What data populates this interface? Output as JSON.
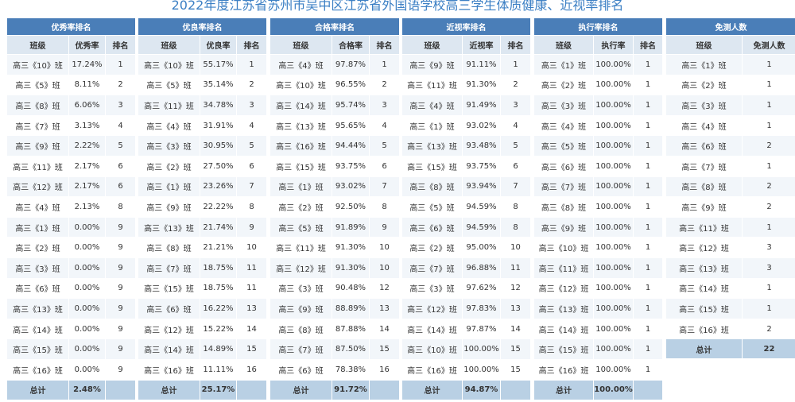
{
  "title": "2022年度江苏省苏州市吴中区江苏省外国语学校高三学生体质健康、近视率排名",
  "colors": {
    "title": "#3b7fc4",
    "caption_bg": "#4a7eb8",
    "column_header_bg": "#dde7f1",
    "row_odd_bg": "#f2f6fa",
    "total_bg": "#b9d0e4"
  },
  "tables": [
    {
      "caption": "优秀率排名",
      "columns": [
        "班级",
        "优秀率",
        "排名"
      ],
      "rows": [
        [
          "高三《10》班",
          "17.24%",
          "1"
        ],
        [
          "高三《5》班",
          "8.11%",
          "2"
        ],
        [
          "高三《8》班",
          "6.06%",
          "3"
        ],
        [
          "高三《7》班",
          "3.13%",
          "4"
        ],
        [
          "高三《9》班",
          "2.22%",
          "5"
        ],
        [
          "高三《11》班",
          "2.17%",
          "6"
        ],
        [
          "高三《12》班",
          "2.17%",
          "6"
        ],
        [
          "高三《4》班",
          "2.13%",
          "8"
        ],
        [
          "高三《1》班",
          "0.00%",
          "9"
        ],
        [
          "高三《2》班",
          "0.00%",
          "9"
        ],
        [
          "高三《3》班",
          "0.00%",
          "9"
        ],
        [
          "高三《6》班",
          "0.00%",
          "9"
        ],
        [
          "高三《13》班",
          "0.00%",
          "9"
        ],
        [
          "高三《14》班",
          "0.00%",
          "9"
        ],
        [
          "高三《15》班",
          "0.00%",
          "9"
        ],
        [
          "高三《16》班",
          "0.00%",
          "9"
        ]
      ],
      "total_label": "总计",
      "total_value": "2.48%"
    },
    {
      "caption": "优良率排名",
      "columns": [
        "班级",
        "优良率",
        "排名"
      ],
      "rows": [
        [
          "高三《10》班",
          "55.17%",
          "1"
        ],
        [
          "高三《5》班",
          "35.14%",
          "2"
        ],
        [
          "高三《11》班",
          "34.78%",
          "3"
        ],
        [
          "高三《4》班",
          "31.91%",
          "4"
        ],
        [
          "高三《3》班",
          "30.95%",
          "5"
        ],
        [
          "高三《2》班",
          "27.50%",
          "6"
        ],
        [
          "高三《1》班",
          "23.26%",
          "7"
        ],
        [
          "高三《9》班",
          "22.22%",
          "8"
        ],
        [
          "高三《13》班",
          "21.74%",
          "9"
        ],
        [
          "高三《8》班",
          "21.21%",
          "10"
        ],
        [
          "高三《7》班",
          "18.75%",
          "11"
        ],
        [
          "高三《15》班",
          "18.75%",
          "11"
        ],
        [
          "高三《6》班",
          "16.22%",
          "13"
        ],
        [
          "高三《12》班",
          "15.22%",
          "14"
        ],
        [
          "高三《14》班",
          "14.89%",
          "15"
        ],
        [
          "高三《16》班",
          "11.11%",
          "16"
        ]
      ],
      "total_label": "总计",
      "total_value": "25.17%"
    },
    {
      "caption": "合格率排名",
      "columns": [
        "班级",
        "合格率",
        "排名"
      ],
      "rows": [
        [
          "高三《4》班",
          "97.87%",
          "1"
        ],
        [
          "高三《10》班",
          "96.55%",
          "2"
        ],
        [
          "高三《14》班",
          "95.74%",
          "3"
        ],
        [
          "高三《13》班",
          "95.65%",
          "4"
        ],
        [
          "高三《16》班",
          "94.44%",
          "5"
        ],
        [
          "高三《15》班",
          "93.75%",
          "6"
        ],
        [
          "高三《1》班",
          "93.02%",
          "7"
        ],
        [
          "高三《2》班",
          "92.50%",
          "8"
        ],
        [
          "高三《5》班",
          "91.89%",
          "9"
        ],
        [
          "高三《11》班",
          "91.30%",
          "10"
        ],
        [
          "高三《12》班",
          "91.30%",
          "10"
        ],
        [
          "高三《3》班",
          "90.48%",
          "12"
        ],
        [
          "高三《9》班",
          "88.89%",
          "13"
        ],
        [
          "高三《8》班",
          "87.88%",
          "14"
        ],
        [
          "高三《7》班",
          "87.50%",
          "15"
        ],
        [
          "高三《6》班",
          "78.38%",
          "16"
        ]
      ],
      "total_label": "总计",
      "total_value": "91.72%"
    },
    {
      "caption": "近视率排名",
      "columns": [
        "班级",
        "近视率",
        "排名"
      ],
      "rows": [
        [
          "高三《9》班",
          "91.11%",
          "1"
        ],
        [
          "高三《11》班",
          "91.30%",
          "2"
        ],
        [
          "高三《4》班",
          "91.49%",
          "3"
        ],
        [
          "高三《1》班",
          "93.02%",
          "4"
        ],
        [
          "高三《13》班",
          "93.48%",
          "5"
        ],
        [
          "高三《15》班",
          "93.75%",
          "6"
        ],
        [
          "高三《8》班",
          "93.94%",
          "7"
        ],
        [
          "高三《5》班",
          "94.59%",
          "8"
        ],
        [
          "高三《6》班",
          "94.59%",
          "8"
        ],
        [
          "高三《2》班",
          "95.00%",
          "10"
        ],
        [
          "高三《7》班",
          "96.88%",
          "11"
        ],
        [
          "高三《3》班",
          "97.62%",
          "12"
        ],
        [
          "高三《12》班",
          "97.83%",
          "13"
        ],
        [
          "高三《14》班",
          "97.87%",
          "14"
        ],
        [
          "高三《10》班",
          "100.00%",
          "15"
        ],
        [
          "高三《16》班",
          "100.00%",
          "15"
        ]
      ],
      "total_label": "总计",
      "total_value": "94.87%"
    },
    {
      "caption": "执行率排名",
      "columns": [
        "班级",
        "执行率",
        "排名"
      ],
      "rows": [
        [
          "高三《1》班",
          "100.00%",
          "1"
        ],
        [
          "高三《2》班",
          "100.00%",
          "1"
        ],
        [
          "高三《3》班",
          "100.00%",
          "1"
        ],
        [
          "高三《4》班",
          "100.00%",
          "1"
        ],
        [
          "高三《5》班",
          "100.00%",
          "1"
        ],
        [
          "高三《6》班",
          "100.00%",
          "1"
        ],
        [
          "高三《7》班",
          "100.00%",
          "1"
        ],
        [
          "高三《8》班",
          "100.00%",
          "1"
        ],
        [
          "高三《9》班",
          "100.00%",
          "1"
        ],
        [
          "高三《10》班",
          "100.00%",
          "1"
        ],
        [
          "高三《11》班",
          "100.00%",
          "1"
        ],
        [
          "高三《12》班",
          "100.00%",
          "1"
        ],
        [
          "高三《13》班",
          "100.00%",
          "1"
        ],
        [
          "高三《14》班",
          "100.00%",
          "1"
        ],
        [
          "高三《15》班",
          "100.00%",
          "1"
        ],
        [
          "高三《16》班",
          "100.00%",
          "1"
        ]
      ],
      "total_label": "总计",
      "total_value": "100.00%"
    },
    {
      "caption": "免测人数",
      "columns": [
        "班级",
        "免测人数"
      ],
      "rows": [
        [
          "高三《1》班",
          "1"
        ],
        [
          "高三《2》班",
          "1"
        ],
        [
          "高三《3》班",
          "1"
        ],
        [
          "高三《4》班",
          "1"
        ],
        [
          "高三《6》班",
          "2"
        ],
        [
          "高三《7》班",
          "1"
        ],
        [
          "高三《8》班",
          "2"
        ],
        [
          "高三《9》班",
          "2"
        ],
        [
          "高三《11》班",
          "1"
        ],
        [
          "高三《12》班",
          "3"
        ],
        [
          "高三《13》班",
          "3"
        ],
        [
          "高三《14》班",
          "1"
        ],
        [
          "高三《15》班",
          "1"
        ],
        [
          "高三《16》班",
          "2"
        ]
      ],
      "total_label": "总计",
      "total_value": "22"
    }
  ]
}
